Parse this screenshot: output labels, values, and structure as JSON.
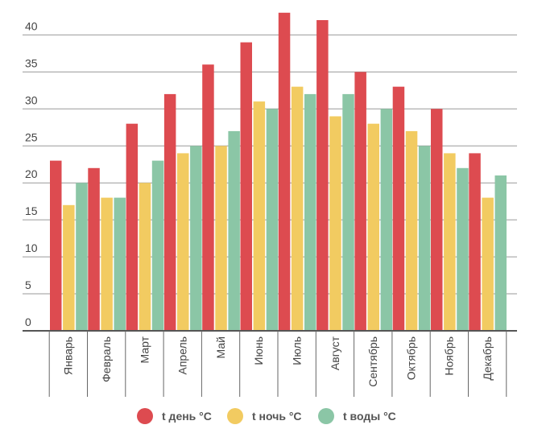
{
  "chart_data": {
    "type": "bar",
    "title": "",
    "xlabel": "",
    "ylabel": "",
    "ylim": [
      0,
      43
    ],
    "yticks": [
      0,
      5,
      10,
      15,
      20,
      25,
      30,
      35,
      40
    ],
    "grid": true,
    "legend_position": "bottom-center",
    "categories": [
      "Январь",
      "Февраль",
      "Март",
      "Апрель",
      "Май",
      "Июнь",
      "Июль",
      "Август",
      "Сентябрь",
      "Октябрь",
      "Ноябрь",
      "Декабрь"
    ],
    "series": [
      {
        "name": "t день °C",
        "color": "#dd4b50",
        "values": [
          23,
          22,
          28,
          32,
          36,
          39,
          43,
          42,
          35,
          33,
          30,
          24
        ]
      },
      {
        "name": "t ночь °C",
        "color": "#f2cb61",
        "values": [
          17,
          18,
          20,
          24,
          25,
          31,
          33,
          29,
          28,
          27,
          24,
          18
        ]
      },
      {
        "name": "t воды °C",
        "color": "#8bc6a6",
        "values": [
          20,
          18,
          23,
          25,
          27,
          30,
          32,
          32,
          30,
          25,
          22,
          21
        ]
      }
    ]
  }
}
